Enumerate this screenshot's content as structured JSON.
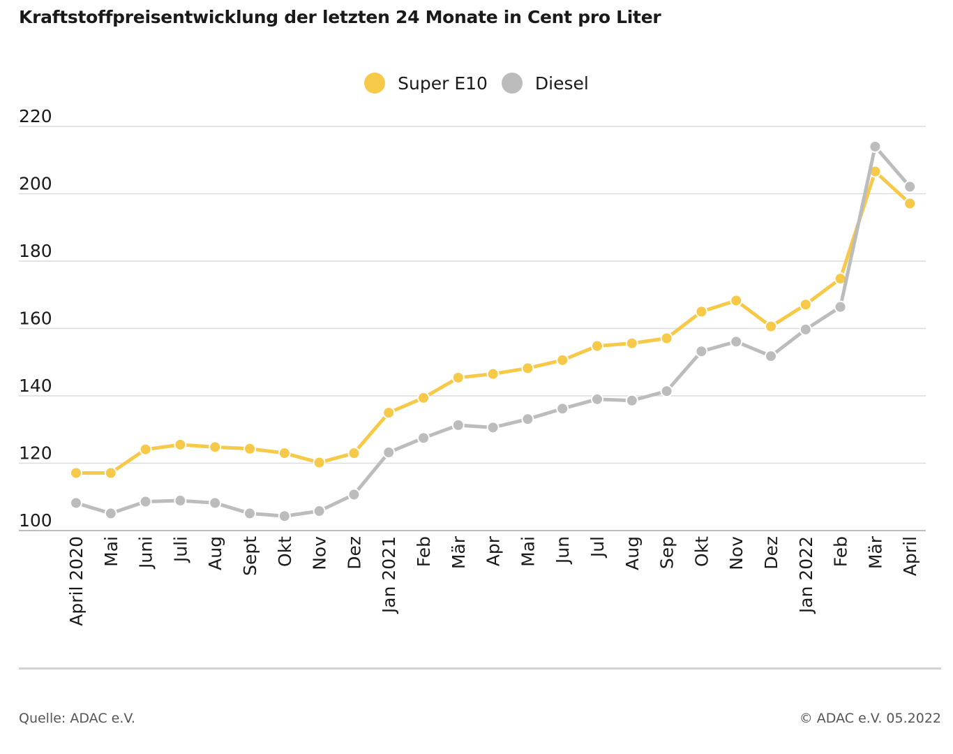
{
  "title": "Kraftstoffpreisentwicklung der letzten 24 Monate in Cent pro Liter",
  "legend": [
    {
      "name": "Super E10",
      "color": "#f7c948"
    },
    {
      "name": "Diesel",
      "color": "#bcbcbc"
    }
  ],
  "footer": {
    "source": "Quelle: ADAC e.V.",
    "copyright": "© ADAC e.V. 05.2022"
  },
  "chart_data": {
    "type": "line",
    "title": "Kraftstoffpreisentwicklung der letzten 24 Monate in Cent pro Liter",
    "xlabel": "",
    "ylabel": "",
    "ylim": [
      100,
      220
    ],
    "yticks": [
      100,
      120,
      140,
      160,
      180,
      200,
      220
    ],
    "grid": true,
    "legend_position": "top-center",
    "categories": [
      "April 2020",
      "Mai",
      "Juni",
      "Juli",
      "Aug",
      "Sept",
      "Okt",
      "Nov",
      "Dez",
      "Jan 2021",
      "Feb",
      "Mär",
      "Apr",
      "Mai",
      "Jun",
      "Jul",
      "Aug",
      "Sep",
      "Okt",
      "Nov",
      "Dez",
      "Jan 2022",
      "Feb",
      "Mär",
      "April"
    ],
    "series": [
      {
        "name": "Super E10",
        "color": "#f7c948",
        "values": [
          117.1,
          117.1,
          124.1,
          125.5,
          124.8,
          124.3,
          123.0,
          120.2,
          123.0,
          135.0,
          139.4,
          145.4,
          146.5,
          148.2,
          150.6,
          154.8,
          155.6,
          157.1,
          165.0,
          168.3,
          160.6,
          167.1,
          174.8,
          206.6,
          197.1
        ]
      },
      {
        "name": "Diesel",
        "color": "#bcbcbc",
        "values": [
          108.2,
          105.1,
          108.6,
          108.9,
          108.2,
          105.1,
          104.3,
          105.8,
          110.7,
          123.2,
          127.5,
          131.3,
          130.6,
          133.1,
          136.2,
          139.0,
          138.6,
          141.4,
          153.2,
          156.1,
          151.8,
          159.7,
          166.4,
          214.0,
          202.1
        ]
      }
    ]
  }
}
